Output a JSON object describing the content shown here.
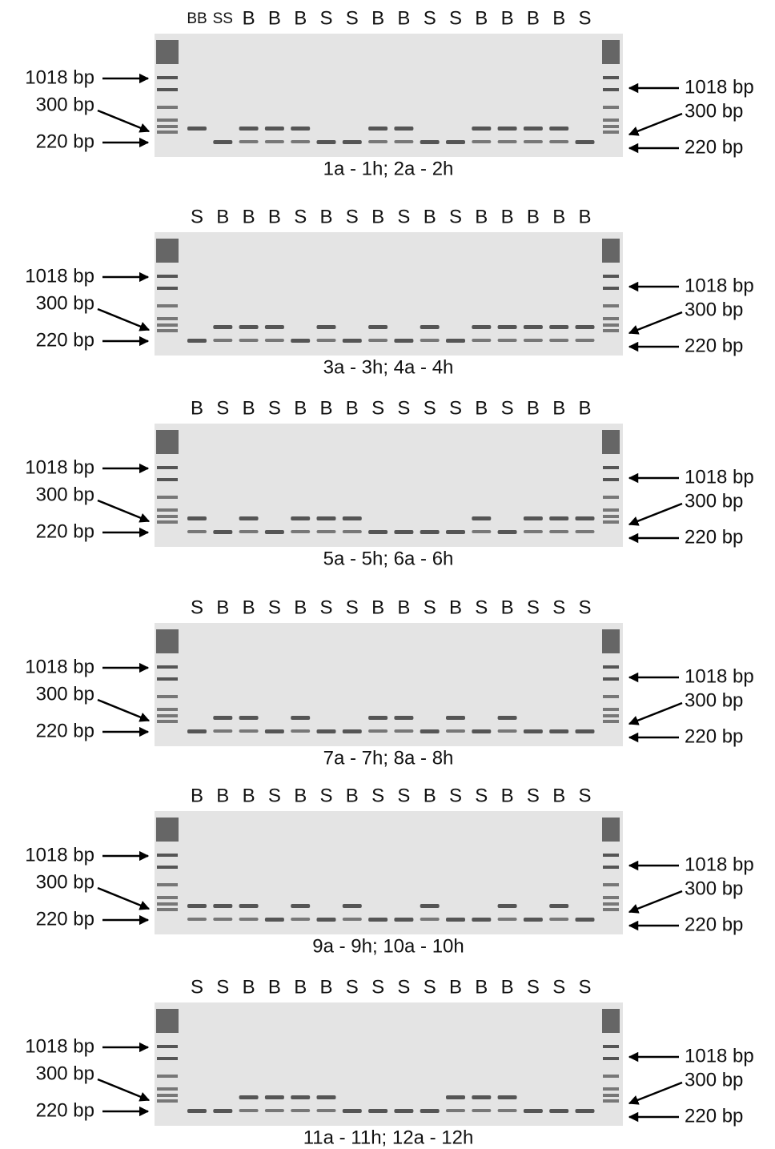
{
  "panels": [
    {
      "lanes": [
        "BB",
        "SS",
        "B",
        "B",
        "B",
        "S",
        "S",
        "B",
        "B",
        "S",
        "S",
        "B",
        "B",
        "B",
        "B",
        "S"
      ],
      "caption": "1a - 1h; 2a - 2h",
      "markers_left": [
        "1018 bp",
        "300 bp",
        "220 bp"
      ],
      "markers_right": [
        "1018 bp",
        "300 bp",
        "220 bp"
      ]
    },
    {
      "lanes": [
        "S",
        "B",
        "B",
        "B",
        "S",
        "B",
        "S",
        "B",
        "S",
        "B",
        "S",
        "B",
        "B",
        "B",
        "B",
        "B"
      ],
      "caption": "3a - 3h; 4a - 4h",
      "markers_left": [
        "1018 bp",
        "300 bp",
        "220 bp"
      ],
      "markers_right": [
        "1018 bp",
        "300 bp",
        "220 bp"
      ]
    },
    {
      "lanes": [
        "B",
        "S",
        "B",
        "S",
        "B",
        "B",
        "B",
        "S",
        "S",
        "S",
        "S",
        "B",
        "S",
        "B",
        "B",
        "B"
      ],
      "caption": "5a - 5h; 6a - 6h",
      "markers_left": [
        "1018 bp",
        "300 bp",
        "220 bp"
      ],
      "markers_right": [
        "1018 bp",
        "300 bp",
        "220 bp"
      ]
    },
    {
      "lanes": [
        "S",
        "B",
        "B",
        "S",
        "B",
        "S",
        "S",
        "B",
        "B",
        "S",
        "B",
        "S",
        "B",
        "S",
        "S",
        "S"
      ],
      "caption": "7a - 7h; 8a - 8h",
      "markers_left": [
        "1018 bp",
        "300 bp",
        "220 bp"
      ],
      "markers_right": [
        "1018 bp",
        "300 bp",
        "220 bp"
      ]
    },
    {
      "lanes": [
        "B",
        "B",
        "B",
        "S",
        "B",
        "S",
        "B",
        "S",
        "S",
        "B",
        "S",
        "S",
        "B",
        "S",
        "B",
        "S"
      ],
      "caption": "9a - 9h; 10a - 10h",
      "markers_left": [
        "1018 bp",
        "300 bp",
        "220 bp"
      ],
      "markers_right": [
        "1018 bp",
        "300 bp",
        "220 bp"
      ]
    },
    {
      "lanes": [
        "S",
        "S",
        "B",
        "B",
        "B",
        "B",
        "S",
        "S",
        "S",
        "S",
        "B",
        "B",
        "B",
        "S",
        "S",
        "S"
      ],
      "caption": "11a - 11h; 12a - 12h",
      "markers_left": [
        "1018 bp",
        "300 bp",
        "220 bp"
      ],
      "markers_right": [
        "1018 bp",
        "300 bp",
        "220 bp"
      ]
    }
  ]
}
